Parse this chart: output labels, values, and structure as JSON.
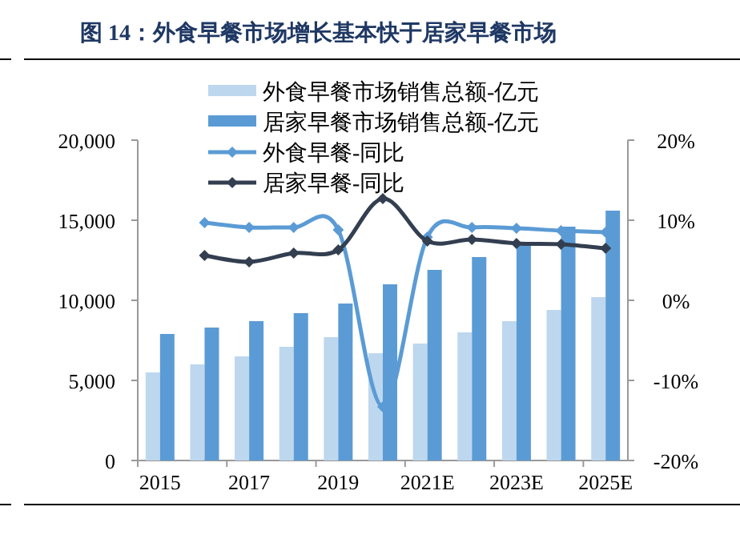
{
  "chart_data": {
    "type": "bar",
    "title": "图 14：外食早餐市场增长基本快于居家早餐市场",
    "categories": [
      "2015",
      null,
      "2017",
      null,
      "2019",
      null,
      "2021E",
      null,
      "2023E",
      null,
      "2025E"
    ],
    "series": [
      {
        "name": "外食早餐市场销售总额-亿元",
        "color": "#bdd7ee",
        "values": [
          5500,
          6000,
          6500,
          7100,
          7700,
          6700,
          7300,
          8000,
          8700,
          9400,
          10200
        ]
      },
      {
        "name": "居家早餐市场销售总额-亿元",
        "color": "#5b9bd5",
        "values": [
          7900,
          8300,
          8700,
          9200,
          9800,
          11000,
          11900,
          12700,
          13600,
          14600,
          15600
        ]
      },
      {
        "name": "外食早餐-同比",
        "type": "line",
        "axis": "y2",
        "color": "#5b9bd5",
        "marker": "diamond",
        "values": [
          null,
          9.7,
          9.1,
          9.1,
          8.8,
          -13.3,
          7.9,
          9.1,
          9.0,
          8.7,
          8.5
        ]
      },
      {
        "name": "居家早餐-同比",
        "type": "line",
        "axis": "y2",
        "color": "#333f50",
        "marker": "diamond",
        "values": [
          null,
          5.6,
          4.8,
          5.9,
          6.3,
          12.7,
          7.4,
          7.6,
          7.1,
          7.0,
          6.5
        ]
      }
    ],
    "ylim": [
      0,
      20000
    ],
    "yticks": [
      {
        "value": 0,
        "label": "0"
      },
      {
        "value": 5000,
        "label": "5,000"
      },
      {
        "value": 10000,
        "label": "10,000"
      },
      {
        "value": 15000,
        "label": "15,000"
      },
      {
        "value": 20000,
        "label": "20,000"
      }
    ],
    "y2lim": [
      -20,
      20
    ],
    "y2ticks": [
      {
        "value": -20,
        "label": "-20%"
      },
      {
        "value": -10,
        "label": "-10%"
      },
      {
        "value": 0,
        "label": "0%"
      },
      {
        "value": 10,
        "label": "10%"
      },
      {
        "value": 20,
        "label": "20%"
      }
    ],
    "grid": false,
    "legend": "top"
  }
}
